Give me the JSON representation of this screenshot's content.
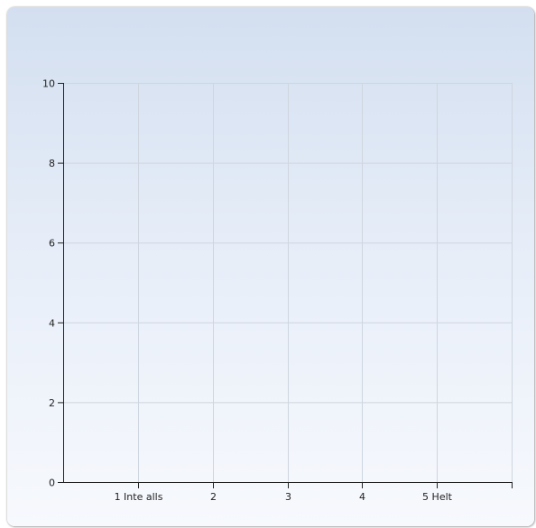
{
  "chart_data": {
    "type": "bar",
    "title": "",
    "xlabel": "",
    "ylabel": "",
    "categories": [
      "1 Inte alls",
      "2",
      "3",
      "4",
      "5 Helt"
    ],
    "values": [
      0,
      0,
      0,
      0,
      0
    ],
    "y_ticks": [
      "0",
      "2",
      "4",
      "6",
      "8",
      "10"
    ],
    "ylim": [
      0,
      10
    ],
    "grid": true,
    "legend": "none",
    "colors": {
      "grid": "#cfd6df",
      "axis": "#222222",
      "background_top": "#d3dff0",
      "background_bottom": "#f7f9fd"
    }
  }
}
